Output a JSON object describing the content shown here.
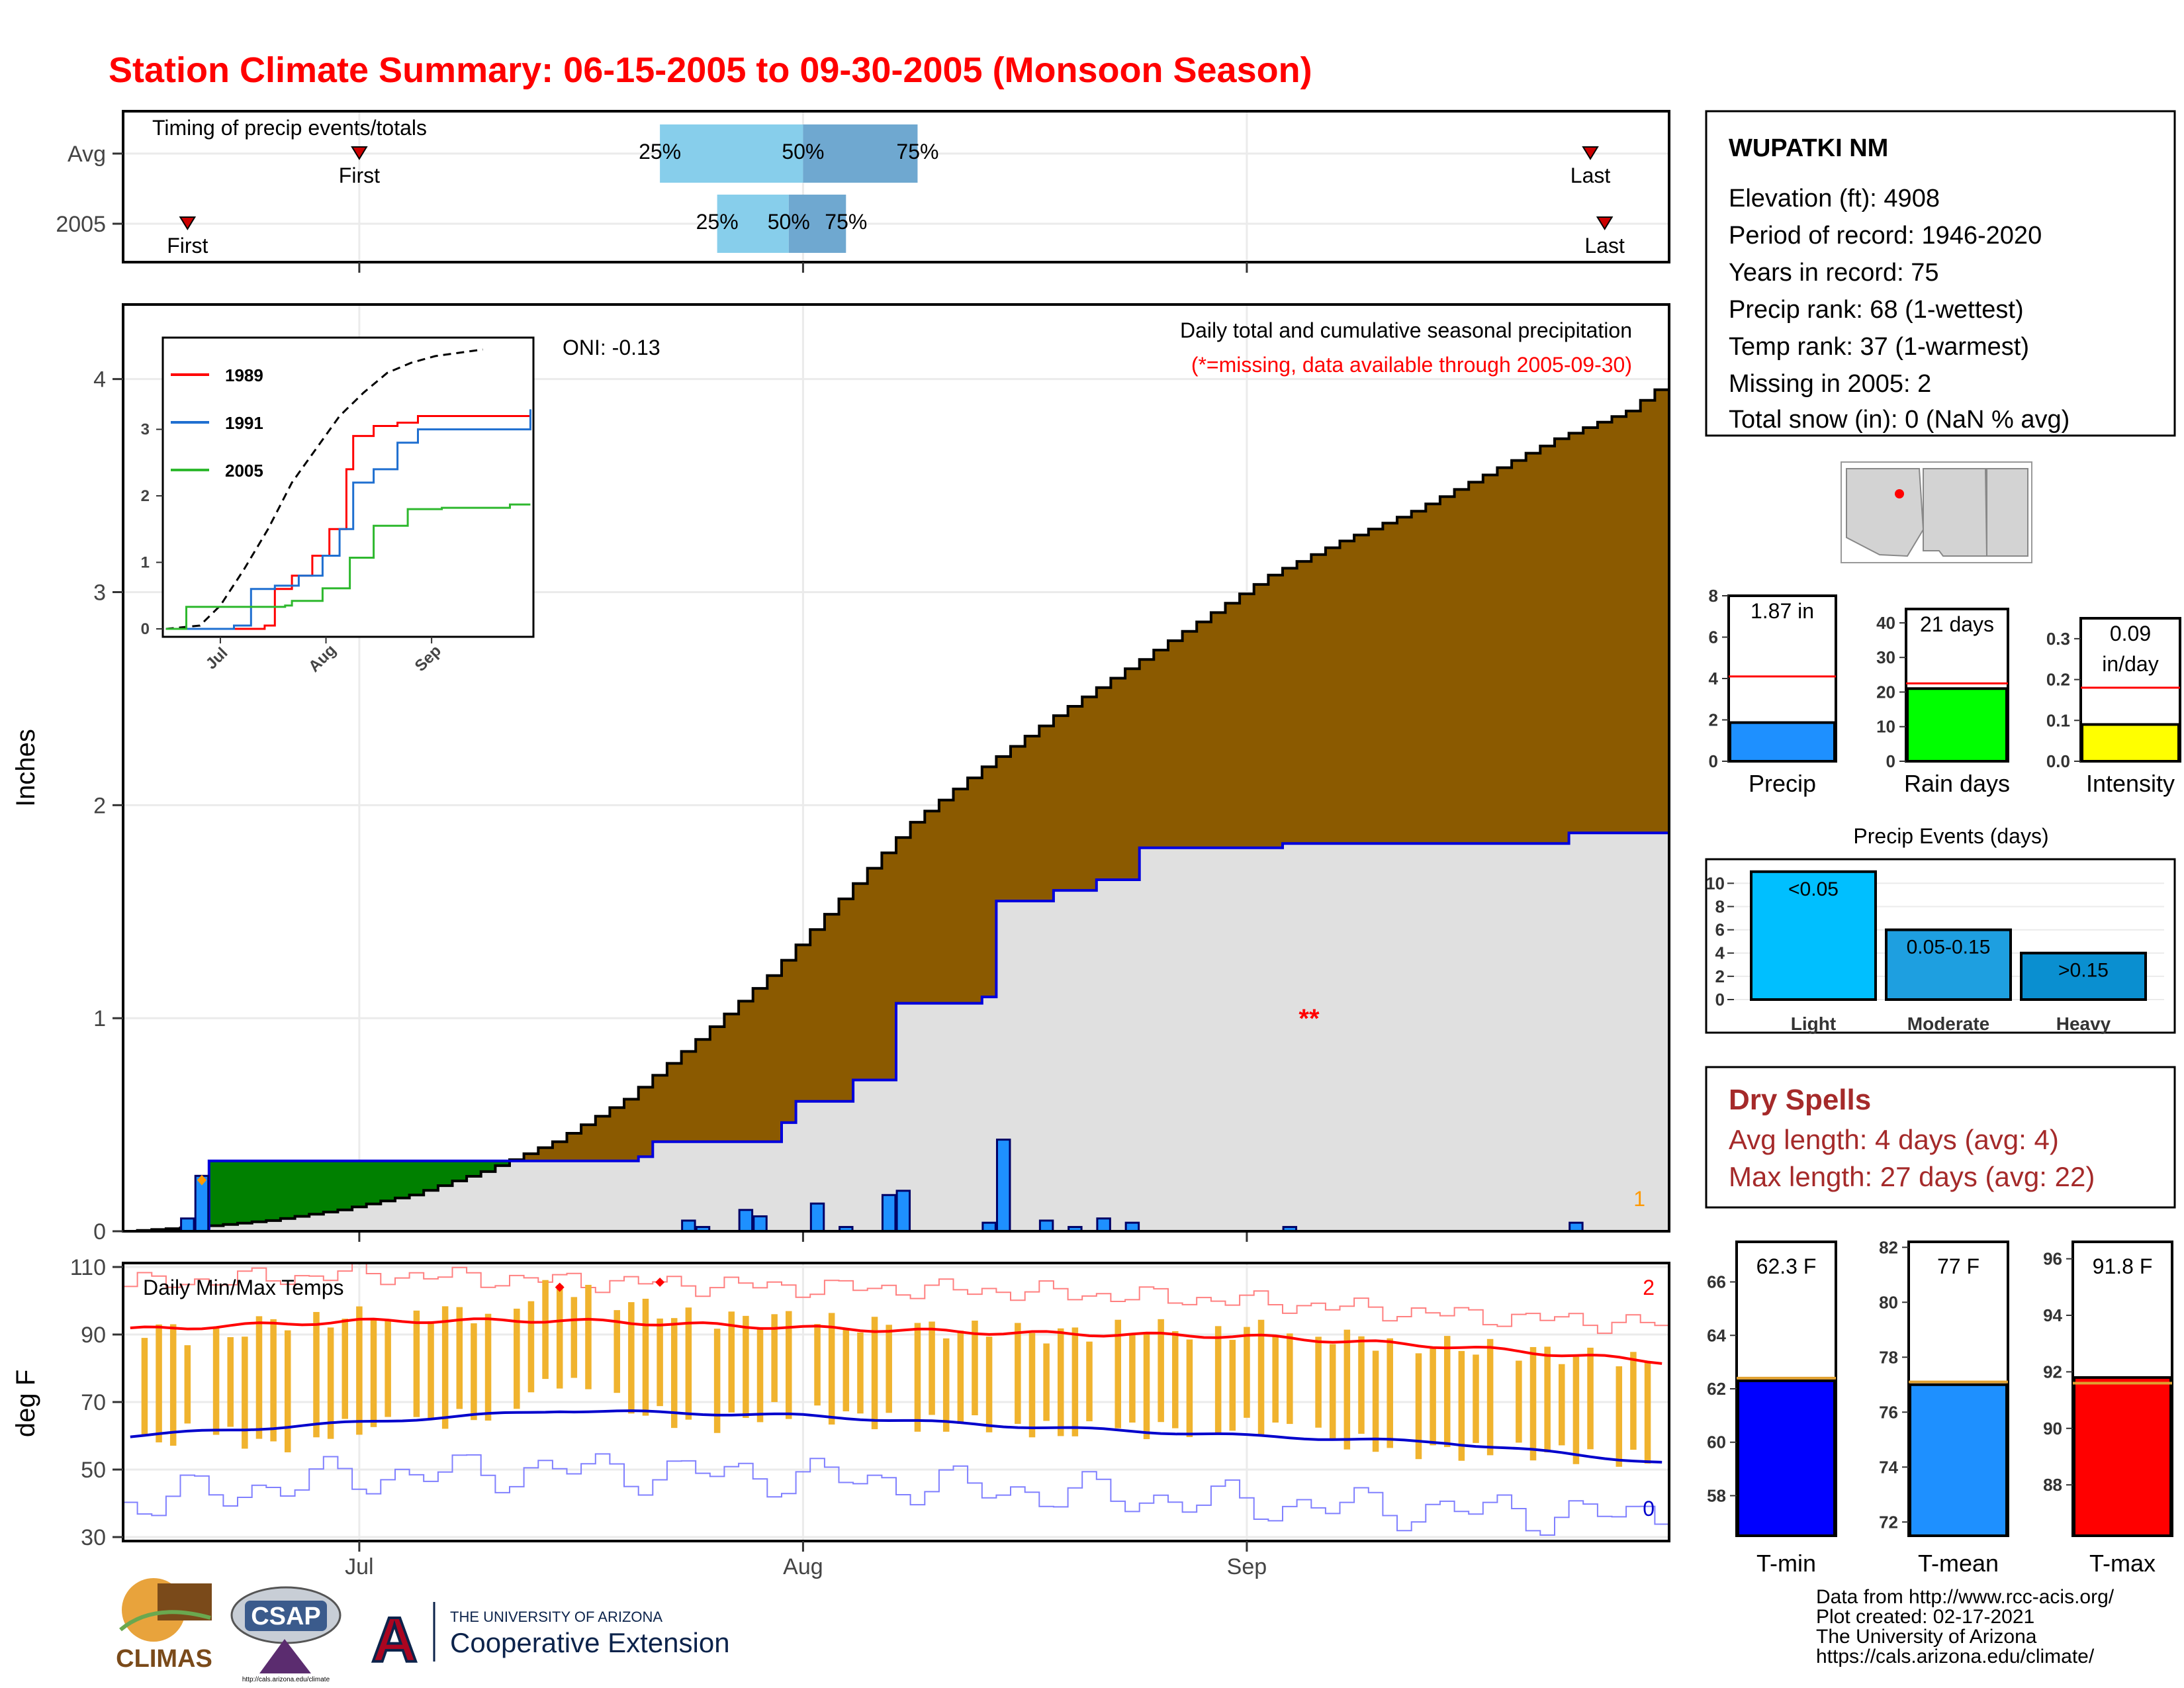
{
  "title": "Station Climate Summary: 06-15-2005 to 09-30-2005 (Monsoon Season)",
  "colors": {
    "title": "#ff0000",
    "brown": "#8b5a00",
    "grey_fill": "#e0e0e0",
    "green": "#008000",
    "blue_line": "#0000dd",
    "precip_bar": "#1e90ff",
    "temp_bar": "#f0b32e",
    "tmax_line": "#ff0000",
    "tmin_line": "#0000cc",
    "q_light": "#87ceeb",
    "q_dark": "#6fa8d0",
    "dry_spell": "#a52a2a",
    "orange": "#ff9900",
    "light": "#00bfff",
    "moderate": "#1e9fe0",
    "heavy": "#0a8fd0"
  },
  "timing_panel": {
    "label": "Timing of precip events/totals",
    "rows": [
      "Avg",
      "2005"
    ],
    "avg_first": "First",
    "avg_last": "Last",
    "yr_first": "First",
    "yr_last": "Last",
    "avg_q": [
      "25%",
      "50%",
      "75%"
    ],
    "yr_q": [
      "25%",
      "50%",
      "75%"
    ],
    "avg_dates": {
      "first": "07-01",
      "q25": "07-22",
      "q50": "08-01",
      "q75": "08-09",
      "last": "09-25"
    },
    "yr_dates": {
      "first": "06-19",
      "q25": "07-26",
      "q50": "07-31",
      "q75": "08-04",
      "last": "09-26"
    }
  },
  "x_axis": {
    "ticks": [
      "Jul",
      "Aug",
      "Sep"
    ],
    "range": [
      "06-15",
      "09-30"
    ]
  },
  "precip_panel": {
    "ylabel": "Inches",
    "yticks": [
      "0",
      "1",
      "2",
      "3",
      "4"
    ],
    "ylim": [
      0,
      4.35
    ],
    "note1": "Daily total and cumulative seasonal precipitation",
    "note2": "(*=missing, data available through 2005-09-30)",
    "oni": "ONI: -0.13",
    "missing_marks": "**",
    "count_label": "1"
  },
  "inset": {
    "legend": [
      "1989",
      "1991",
      "2005"
    ],
    "legend_colors": [
      "#ff0000",
      "#1f6fd0",
      "#2eb82e"
    ],
    "yticks": [
      "0",
      "1",
      "2",
      "3"
    ],
    "xticks": [
      "Jul",
      "Aug",
      "Sep"
    ]
  },
  "temp_panel": {
    "ylabel": "deg F",
    "label": "Daily Min/Max Temps",
    "yticks": [
      "30",
      "50",
      "70",
      "90",
      "110"
    ],
    "ylim": [
      30,
      110
    ],
    "record_high_count": "2",
    "record_low_count": "0"
  },
  "station": {
    "name": "WUPATKI NM",
    "lines": [
      "Elevation (ft): 4908",
      "Period of record: 1946-2020",
      "Years in record: 75",
      "Precip rank: 68 (1-wettest)",
      "Temp rank: 37 (1-warmest)",
      "Missing in 2005: 2",
      "Total snow (in): 0 (NaN % avg)"
    ]
  },
  "mini_bars": [
    {
      "label": "Precip",
      "value_text": "1.87 in",
      "value": 1.87,
      "avg": 4.1,
      "ylim": [
        0,
        8
      ],
      "ticks": [
        "0",
        "2",
        "4",
        "6",
        "8"
      ],
      "tick_vals": [
        0,
        2,
        4,
        6,
        8
      ],
      "color": "#1e90ff"
    },
    {
      "label": "Rain days",
      "value_text": "21 days",
      "value": 21,
      "avg": 22.5,
      "ylim": [
        0,
        44
      ],
      "ticks": [
        "0",
        "10",
        "20",
        "30",
        "40"
      ],
      "tick_vals": [
        0,
        10,
        20,
        30,
        40
      ],
      "color": "#00ff00"
    },
    {
      "label": "Intensity",
      "value_text": "0.09",
      "value_text2": "in/day",
      "value": 0.09,
      "avg": 0.18,
      "ylim": [
        0,
        0.35
      ],
      "ticks": [
        "0.0",
        "0.1",
        "0.2",
        "0.3"
      ],
      "tick_vals": [
        0,
        0.1,
        0.2,
        0.3
      ],
      "color": "#ffff00"
    }
  ],
  "events": {
    "title": "Precip Events (days)",
    "categories": [
      "Light",
      "Moderate",
      "Heavy"
    ],
    "labels": [
      "<0.05",
      "0.05-0.15",
      ">0.15"
    ],
    "values": [
      11,
      6,
      4
    ],
    "yticks": [
      "0",
      "2",
      "4",
      "6",
      "8",
      "10"
    ],
    "ylim": [
      0,
      11.5
    ]
  },
  "dry_spells": {
    "title": "Dry Spells",
    "avg_line": "Avg length: 4 days (avg: 4)",
    "max_line": "Max length: 27 days (avg: 22)"
  },
  "temp_bars": [
    {
      "label": "T-min",
      "value_text": "62.3 F",
      "value": 62.3,
      "avg": 62.4,
      "ylim": [
        56.5,
        67.5
      ],
      "ticks": [
        "58",
        "60",
        "62",
        "64",
        "66"
      ],
      "tick_vals": [
        58,
        60,
        62,
        64,
        66
      ],
      "color": "#0000ff"
    },
    {
      "label": "T-mean",
      "value_text": "77 F",
      "value": 77,
      "avg": 77.1,
      "ylim": [
        71.5,
        82.2
      ],
      "ticks": [
        "72",
        "74",
        "76",
        "78",
        "80",
        "82"
      ],
      "tick_vals": [
        72,
        74,
        76,
        78,
        80,
        82
      ],
      "color": "#1e90ff"
    },
    {
      "label": "T-max",
      "value_text": "91.8 F",
      "value": 91.8,
      "avg": 91.6,
      "ylim": [
        86.2,
        96.6
      ],
      "ticks": [
        "88",
        "90",
        "92",
        "94",
        "96"
      ],
      "tick_vals": [
        88,
        90,
        92,
        94,
        96
      ],
      "color": "#ff0000"
    }
  ],
  "footer": {
    "lines": [
      "Data from http://www.rcc-acis.org/",
      "Plot created: 02-17-2021",
      "The University of Arizona",
      "https://cals.arizona.edu/climate/"
    ],
    "climas": "CLIMAS",
    "csap": "CSAP",
    "csap_url": "http://cals.arizona.edu/climate",
    "ua_top": "THE UNIVERSITY OF ARIZONA",
    "ua_bottom": "Cooperative Extension",
    "ua_letter": "A"
  },
  "chart_data": [
    {
      "type": "area",
      "title": "Daily total and cumulative seasonal precipitation",
      "ylabel": "Inches",
      "x_range": [
        "06-15",
        "09-30"
      ],
      "ylim": [
        0,
        4.35
      ],
      "series": [
        {
          "name": "",
          "kind": "average cumulative precipitation (brown area)",
          "points": [
            [
              "06-15",
              0.0
            ],
            [
              "06-20",
              0.02
            ],
            [
              "06-25",
              0.05
            ],
            [
              "06-30",
              0.1
            ],
            [
              "07-05",
              0.17
            ],
            [
              "07-10",
              0.28
            ],
            [
              "07-15",
              0.42
            ],
            [
              "07-20",
              0.62
            ],
            [
              "07-25",
              0.9
            ],
            [
              "07-30",
              1.2
            ],
            [
              "08-04",
              1.56
            ],
            [
              "08-09",
              1.92
            ],
            [
              "08-14",
              2.18
            ],
            [
              "08-19",
              2.42
            ],
            [
              "08-24",
              2.64
            ],
            [
              "08-29",
              2.86
            ],
            [
              "09-03",
              3.08
            ],
            [
              "09-08",
              3.24
            ],
            [
              "09-13",
              3.38
            ],
            [
              "09-18",
              3.55
            ],
            [
              "09-23",
              3.72
            ],
            [
              "09-28",
              3.85
            ],
            [
              "09-30",
              3.95
            ]
          ]
        },
        {
          "name": "2005",
          "kind": "cumulative precipitation (blue line)",
          "points": [
            [
              "06-15",
              0.0
            ],
            [
              "06-20",
              0.0
            ],
            [
              "06-21",
              0.33
            ],
            [
              "07-20",
              0.33
            ],
            [
              "07-21",
              0.35
            ],
            [
              "07-22",
              0.42
            ],
            [
              "07-31",
              0.51
            ],
            [
              "08-01",
              0.61
            ],
            [
              "08-05",
              0.71
            ],
            [
              "08-08",
              1.07
            ],
            [
              "08-14",
              1.1
            ],
            [
              "08-15",
              1.55
            ],
            [
              "08-19",
              1.6
            ],
            [
              "08-22",
              1.65
            ],
            [
              "08-25",
              1.8
            ],
            [
              "09-04",
              1.82
            ],
            [
              "09-24",
              1.87
            ],
            [
              "09-30",
              1.87
            ]
          ]
        }
      ],
      "daily_precip": [
        [
          "06-19",
          0.06
        ],
        [
          "06-20",
          0.26
        ],
        [
          "07-24",
          0.05
        ],
        [
          "07-25",
          0.02
        ],
        [
          "07-28",
          0.1
        ],
        [
          "07-29",
          0.07
        ],
        [
          "08-02",
          0.13
        ],
        [
          "08-04",
          0.02
        ],
        [
          "08-07",
          0.17
        ],
        [
          "08-08",
          0.19
        ],
        [
          "08-14",
          0.04
        ],
        [
          "08-15",
          0.43
        ],
        [
          "08-18",
          0.05
        ],
        [
          "08-20",
          0.02
        ],
        [
          "08-22",
          0.06
        ],
        [
          "08-24",
          0.04
        ],
        [
          "09-04",
          0.02
        ],
        [
          "09-24",
          0.04
        ]
      ],
      "missing_days": 2
    },
    {
      "type": "line",
      "title": "",
      "x_range": [
        "06-15",
        "09-30"
      ],
      "ylim": [
        0,
        4.2
      ],
      "series": [
        {
          "name": "",
          "kind": "average (dashed)",
          "points": [
            [
              "06-15",
              0.0
            ],
            [
              "06-25",
              0.05
            ],
            [
              "07-01",
              0.35
            ],
            [
              "07-08",
              0.9
            ],
            [
              "07-15",
              1.5
            ],
            [
              "07-22",
              2.2
            ],
            [
              "07-29",
              2.7
            ],
            [
              "08-05",
              3.2
            ],
            [
              "08-12",
              3.55
            ],
            [
              "08-19",
              3.85
            ],
            [
              "08-26",
              4.0
            ],
            [
              "09-02",
              4.1
            ],
            [
              "09-09",
              4.15
            ],
            [
              "09-16",
              4.2
            ]
          ]
        },
        {
          "name": "1989",
          "points": [
            [
              "06-15",
              0.0
            ],
            [
              "07-14",
              0.05
            ],
            [
              "07-17",
              0.6
            ],
            [
              "07-22",
              0.8
            ],
            [
              "07-28",
              1.1
            ],
            [
              "08-02",
              1.5
            ],
            [
              "08-07",
              2.4
            ],
            [
              "08-09",
              2.9
            ],
            [
              "08-15",
              3.05
            ],
            [
              "08-22",
              3.1
            ],
            [
              "08-28",
              3.2
            ],
            [
              "09-30",
              3.2
            ]
          ]
        },
        {
          "name": "1991",
          "points": [
            [
              "06-15",
              0.0
            ],
            [
              "07-05",
              0.05
            ],
            [
              "07-10",
              0.6
            ],
            [
              "07-17",
              0.65
            ],
            [
              "07-24",
              0.8
            ],
            [
              "07-31",
              1.1
            ],
            [
              "08-05",
              1.5
            ],
            [
              "08-09",
              2.2
            ],
            [
              "08-15",
              2.4
            ],
            [
              "08-22",
              2.8
            ],
            [
              "08-28",
              3.0
            ],
            [
              "09-30",
              3.3
            ]
          ]
        },
        {
          "name": "2005",
          "points": [
            [
              "06-15",
              0.0
            ],
            [
              "06-21",
              0.33
            ],
            [
              "07-20",
              0.35
            ],
            [
              "07-22",
              0.42
            ],
            [
              "07-31",
              0.61
            ],
            [
              "08-08",
              1.07
            ],
            [
              "08-15",
              1.55
            ],
            [
              "08-25",
              1.8
            ],
            [
              "09-04",
              1.82
            ],
            [
              "09-24",
              1.87
            ],
            [
              "09-30",
              1.87
            ]
          ]
        }
      ]
    },
    {
      "type": "bar",
      "title": "Daily Min/Max Temps",
      "ylabel": "deg F",
      "x_range": [
        "06-15",
        "09-30"
      ],
      "ylim": [
        30,
        110
      ],
      "series": [
        {
          "name": "",
          "kind": "daily min-max range (bars)",
          "points": [
            [
              "06-17",
              58,
              92
            ],
            [
              "06-20",
              62,
              88
            ],
            [
              "06-25",
              57,
              94
            ],
            [
              "06-30",
              62,
              95
            ],
            [
              "07-05",
              64,
              97
            ],
            [
              "07-10",
              66,
              96
            ],
            [
              "07-15",
              77,
              105
            ],
            [
              "07-20",
              68,
              99
            ],
            [
              "07-25",
              63,
              94
            ],
            [
              "07-30",
              67,
              95
            ],
            [
              "08-04",
              66,
              93
            ],
            [
              "08-09",
              63,
              92
            ],
            [
              "08-14",
              64,
              91
            ],
            [
              "08-19",
              61,
              90
            ],
            [
              "08-24",
              62,
              92
            ],
            [
              "08-29",
              62,
              91
            ],
            [
              "09-03",
              63,
              92
            ],
            [
              "09-08",
              58,
              89
            ],
            [
              "09-13",
              56,
              87
            ],
            [
              "09-18",
              55,
              86
            ],
            [
              "09-23",
              55,
              84
            ],
            [
              "09-28",
              53,
              82
            ]
          ]
        },
        {
          "name": "",
          "kind": "average Tmax (red line)",
          "points": [
            [
              "06-15",
              91.5
            ],
            [
              "07-01",
              94
            ],
            [
              "07-15",
              94.2
            ],
            [
              "08-01",
              92
            ],
            [
              "08-15",
              90.5
            ],
            [
              "09-01",
              89.5
            ],
            [
              "09-15",
              86.5
            ],
            [
              "09-30",
              82
            ]
          ]
        },
        {
          "name": "",
          "kind": "average Tmin (blue line)",
          "points": [
            [
              "06-15",
              60
            ],
            [
              "07-01",
              64
            ],
            [
              "07-15",
              67.5
            ],
            [
              "08-01",
              66
            ],
            [
              "08-15",
              63
            ],
            [
              "09-01",
              60
            ],
            [
              "09-15",
              58
            ],
            [
              "09-30",
              52
            ]
          ]
        },
        {
          "name": "",
          "kind": "record high (thin red)",
          "points": [
            [
              "06-15",
              105
            ],
            [
              "07-01",
              108
            ],
            [
              "07-15",
              106
            ],
            [
              "08-01",
              104
            ],
            [
              "08-15",
              103
            ],
            [
              "09-01",
              100
            ],
            [
              "09-15",
              96
            ],
            [
              "09-30",
              93
            ]
          ]
        },
        {
          "name": "",
          "kind": "record low (thin blue)",
          "points": [
            [
              "06-15",
              40
            ],
            [
              "07-01",
              48
            ],
            [
              "07-15",
              50
            ],
            [
              "08-01",
              48
            ],
            [
              "08-15",
              44
            ],
            [
              "09-01",
              40
            ],
            [
              "09-15",
              38
            ],
            [
              "09-30",
              36
            ]
          ]
        }
      ],
      "record_highs_2005": 2,
      "record_lows_2005": 0
    }
  ]
}
